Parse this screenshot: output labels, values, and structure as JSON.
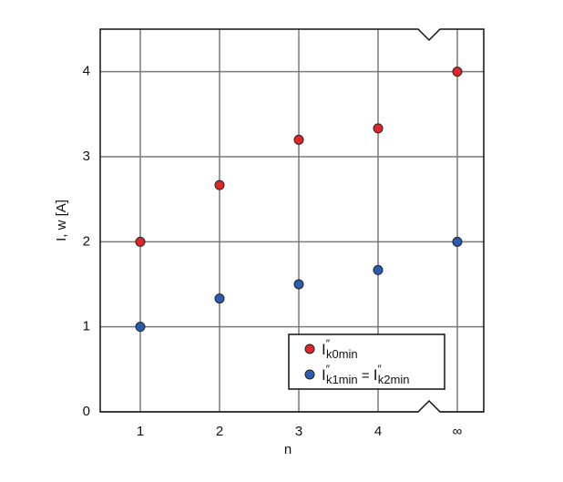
{
  "chart_data": {
    "type": "scatter",
    "x_label": "n",
    "y_label": "I, w [A]",
    "categories": [
      "1",
      "2",
      "3",
      "4",
      "∞"
    ],
    "series": [
      {
        "name": "I″k0min",
        "color": "#e0262b",
        "values": [
          2,
          2.667,
          3.2,
          3.333,
          4
        ]
      },
      {
        "name": "I″k1min = I″k2min",
        "color": "#2a5cb0",
        "values": [
          1,
          1.333,
          1.5,
          1.667,
          2
        ]
      }
    ],
    "ylim": [
      0,
      4.5
    ],
    "yticks": [
      0,
      1,
      2,
      3,
      4
    ],
    "grid": true,
    "legend": "lower right"
  }
}
